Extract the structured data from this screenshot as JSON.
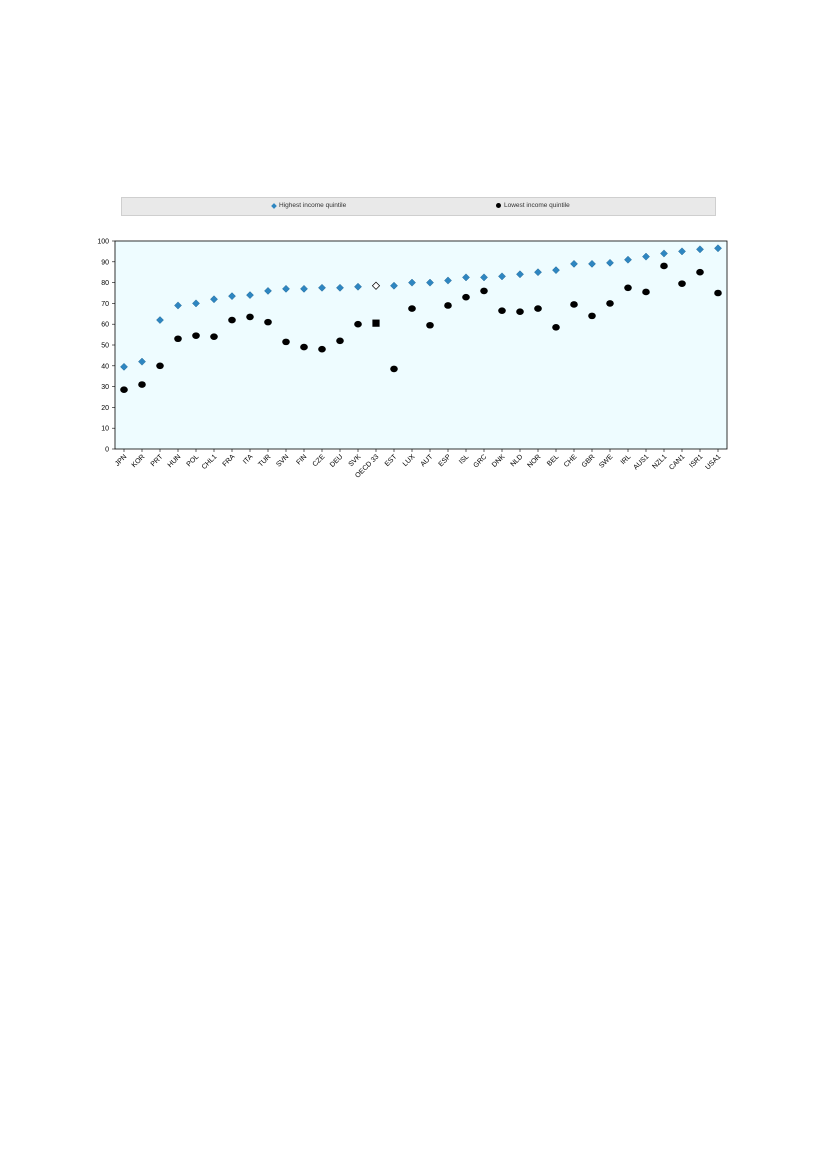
{
  "legend": {
    "series1": "Highest income quintile",
    "series2": "Lowest income quintile"
  },
  "colors": {
    "plot_background": "#eefcff",
    "series1": "#2e86c1",
    "series2": "#000000"
  },
  "chart_data": {
    "type": "scatter",
    "title": "",
    "xlabel": "",
    "ylabel": "",
    "ylim": [
      0,
      100
    ],
    "yticks": [
      0,
      10,
      20,
      30,
      40,
      50,
      60,
      70,
      80,
      90,
      100
    ],
    "legend_position": "top",
    "grid": false,
    "categories": [
      "JPN",
      "KOR",
      "PRT",
      "HUN",
      "POL",
      "CHL1",
      "FRA",
      "ITA",
      "TUR",
      "SVN",
      "FIN",
      "CZE",
      "DEU",
      "SVK",
      "OECD 33",
      "EST",
      "LUX",
      "AUT",
      "ESP",
      "ISL",
      "GRC",
      "DNK",
      "NLD",
      "NOR",
      "BEL",
      "CHE",
      "GBR",
      "SWE",
      "IRL",
      "AUS1",
      "NZL1",
      "CAN1",
      "ISR1",
      "USA1"
    ],
    "highlight_category": "OECD 33",
    "series": [
      {
        "name": "Highest income quintile",
        "marker": "diamond",
        "values": [
          39.5,
          42,
          62,
          69,
          70,
          72,
          73.5,
          74,
          76,
          77,
          77,
          77.5,
          77.5,
          78,
          78.5,
          78.5,
          80,
          80,
          81,
          82.5,
          82.5,
          83,
          84,
          85,
          86,
          89,
          89,
          89.5,
          91,
          92.5,
          94,
          95,
          96,
          96.5
        ]
      },
      {
        "name": "Lowest income quintile",
        "marker": "circle",
        "values": [
          28.5,
          31,
          40,
          53,
          54.5,
          54,
          62,
          63.5,
          61,
          51.5,
          49,
          48,
          52,
          60,
          60.5,
          38.5,
          67.5,
          59.5,
          69,
          73,
          76,
          66.5,
          66,
          67.5,
          58.5,
          69.5,
          64,
          70,
          77.5,
          75.5,
          88,
          79.5,
          85,
          75
        ]
      }
    ]
  }
}
